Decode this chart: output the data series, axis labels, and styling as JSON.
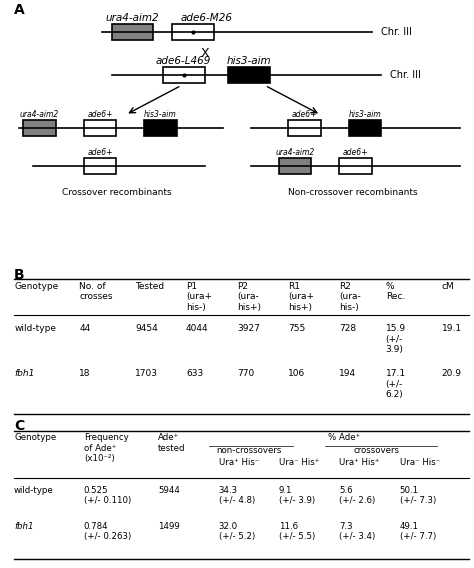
{
  "panel_A_label": "A",
  "panel_B_label": "B",
  "panel_C_label": "C",
  "gray_color": "#808080",
  "background_color": "#ffffff",
  "tableB_col_headers": [
    "Genotype",
    "No. of\ncrosses",
    "Tested",
    "P1\n(ura+\nhis-)",
    "P2\n(ura-\nhis+)",
    "R1\n(ura+\nhis+)",
    "R2\n(ura-\nhis-)",
    "%\nRec.",
    "cM"
  ],
  "tableB_row1": [
    "wild-type",
    "44",
    "9454",
    "4044",
    "3927",
    "755",
    "728",
    "15.9\n(+/-\n3.9)",
    "19.1"
  ],
  "tableB_row2": [
    "fbh1",
    "18",
    "1703",
    "633",
    "770",
    "106",
    "194",
    "17.1\n(+/-\n6.2)",
    "20.9"
  ],
  "tableC_col1_headers": [
    "Genotype",
    "Frequency\nof Ade⁺\n(x10⁻²)",
    "Ade⁺\ntested"
  ],
  "tableC_pct_header": "% Ade⁺",
  "tableC_nc_header": "non-crossovers",
  "tableC_co_header": "crossovers",
  "tableC_sub_headers": [
    "Ura⁺ His⁻",
    "Ura⁻ His⁺",
    "Ura⁺ His⁺",
    "Ura⁻ His⁻"
  ],
  "tableC_row1": [
    "wild-type",
    "0.525\n(+/- 0.110)",
    "5944",
    "34.3\n(+/- 4.8)",
    "9.1\n(+/- 3.9)",
    "5.6\n(+/- 2.6)",
    "50.1\n(+/- 7.3)"
  ],
  "tableC_row2": [
    "fbh1",
    "0.784\n(+/- 0.263)",
    "1499",
    "32.0\n(+/- 5.2)",
    "11.6\n(+/- 5.5)",
    "7.3\n(+/- 3.4)",
    "49.1\n(+/- 7.7)"
  ]
}
